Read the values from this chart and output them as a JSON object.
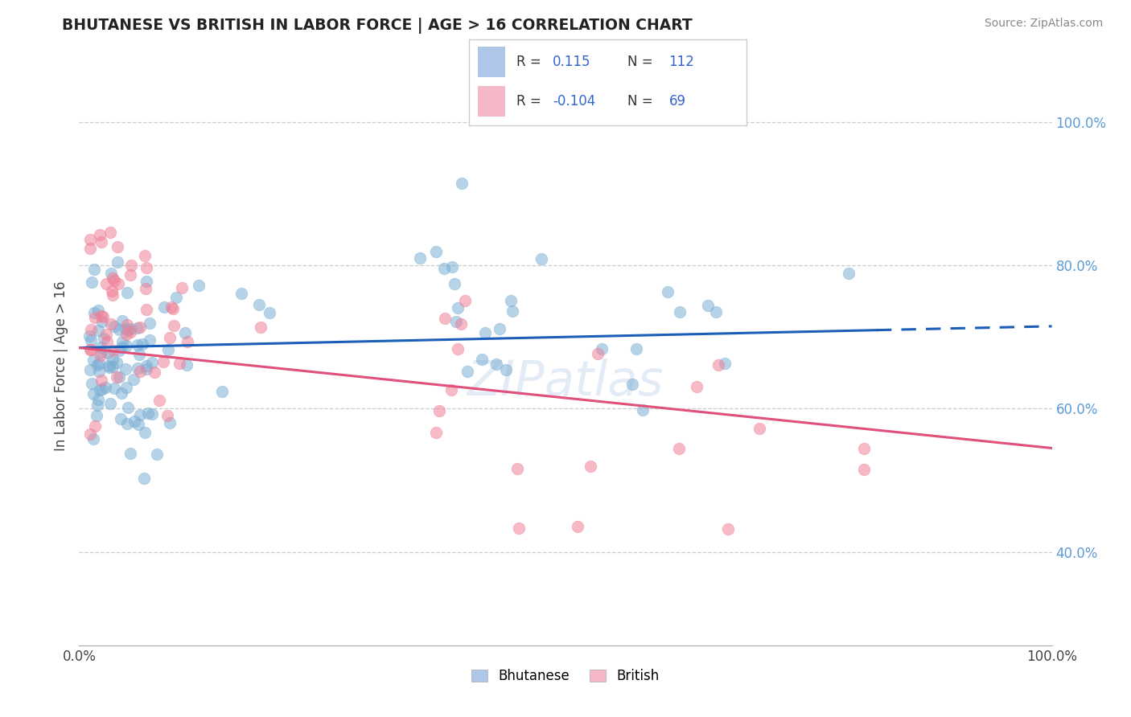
{
  "title": "BHUTANESE VS BRITISH IN LABOR FORCE | AGE > 16 CORRELATION CHART",
  "source": "Source: ZipAtlas.com",
  "ylabel": "In Labor Force | Age > 16",
  "xlim": [
    0.0,
    1.0
  ],
  "ylim": [
    0.27,
    1.05
  ],
  "ytick_labels": [
    "40.0%",
    "60.0%",
    "80.0%",
    "100.0%"
  ],
  "ytick_values": [
    0.4,
    0.6,
    0.8,
    1.0
  ],
  "xtick_labels": [
    "0.0%",
    "100.0%"
  ],
  "xtick_values": [
    0.0,
    1.0
  ],
  "bhutanese_color": "#7bafd4",
  "british_color": "#f08098",
  "trend_blue_color": "#1a5eb8",
  "trend_pink_color": "#e0507a",
  "background_color": "#ffffff",
  "grid_color": "#cccccc",
  "legend_blue_color": "#aec6e8",
  "legend_pink_color": "#f4b8c8",
  "blue_trend_start_x": 0.0,
  "blue_trend_end_x": 1.0,
  "blue_trend_dash_start": 0.82,
  "blue_trend_start_y": 0.685,
  "blue_trend_end_y": 0.715,
  "pink_trend_start_y": 0.685,
  "pink_trend_end_y": 0.545
}
